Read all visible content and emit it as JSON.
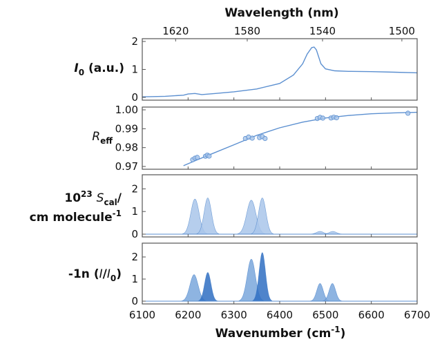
{
  "colors": {
    "line": "#5b8fd0",
    "light": "#a9c6ea",
    "mid": "#7aa7dc",
    "dark": "#2f6fc2",
    "frame": "#555555"
  },
  "chart_data": {
    "type": "line",
    "x_axis": {
      "label_prefix": "Wavenumber (cm",
      "label_sup": "-1",
      "label_suffix": ")",
      "range": [
        6100,
        6700
      ],
      "ticks": [
        6100,
        6200,
        6300,
        6400,
        6500,
        6600,
        6700
      ],
      "tick_labels": [
        "6100",
        "6200",
        "6300",
        "6400",
        "6500",
        "6600",
        "6700"
      ]
    },
    "top_axis": {
      "label": "Wavelength (nm)",
      "ticks": [
        1620,
        1580,
        1540,
        1500
      ],
      "tick_labels": [
        "1620",
        "1580",
        "1540",
        "1500"
      ]
    },
    "panels": [
      {
        "id": "i0",
        "label": {
          "italic": "I",
          "sub": "0",
          "rest": " (a.u.)"
        },
        "ylim": [
          0,
          2
        ],
        "yticks": [
          0,
          1,
          2
        ],
        "ytick_labels": [
          "0",
          "1",
          "2"
        ],
        "series": [
          {
            "kind": "line",
            "x": [
              6100,
              6150,
              6190,
              6200,
              6215,
              6230,
              6260,
              6300,
              6350,
              6400,
              6430,
              6450,
              6460,
              6470,
              6475,
              6480,
              6485,
              6490,
              6500,
              6520,
              6550,
              6600,
              6650,
              6700
            ],
            "y": [
              0.02,
              0.04,
              0.08,
              0.12,
              0.14,
              0.1,
              0.14,
              0.2,
              0.3,
              0.5,
              0.8,
              1.2,
              1.55,
              1.78,
              1.8,
              1.7,
              1.45,
              1.2,
              1.02,
              0.95,
              0.93,
              0.92,
              0.9,
              0.88
            ]
          }
        ]
      },
      {
        "id": "reff",
        "label": {
          "italic": "R",
          "sub": "eff",
          "rest": ""
        },
        "ylim": [
          0.97,
          1.0
        ],
        "yticks": [
          0.97,
          0.98,
          0.99,
          1.0
        ],
        "ytick_labels": [
          "0.97",
          "0.98",
          "0.99",
          "1.00"
        ],
        "series": [
          {
            "kind": "line",
            "x": [
              6190,
              6220,
              6250,
              6300,
              6350,
              6400,
              6450,
              6500,
              6550,
              6600,
              6650,
              6700
            ],
            "y": [
              0.9704,
              0.9735,
              0.9765,
              0.9815,
              0.9865,
              0.9905,
              0.9935,
              0.9957,
              0.997,
              0.9979,
              0.9984,
              0.9987
            ]
          },
          {
            "kind": "scatter",
            "x": [
              6210,
              6215,
              6220,
              6238,
              6242,
              6246,
              6325,
              6332,
              6340,
              6356,
              6362,
              6368,
              6482,
              6488,
              6494,
              6512,
              6518,
              6524,
              6680
            ],
            "y": [
              0.9736,
              0.9744,
              0.9748,
              0.9754,
              0.976,
              0.9755,
              0.9848,
              0.9856,
              0.985,
              0.9853,
              0.9858,
              0.9848,
              0.9954,
              0.996,
              0.9956,
              0.9957,
              0.9961,
              0.9958,
              0.9982
            ]
          }
        ]
      },
      {
        "id": "scal",
        "label": {
          "line1_pre": "10",
          "line1_sup": "23",
          "line1_italic": "S",
          "line1_sub": "cal",
          "line1_post": "/",
          "line2": "cm molecule",
          "line2_sup": "-1"
        },
        "ylim": [
          0,
          2.5
        ],
        "yticks": [
          0,
          1,
          2
        ],
        "ytick_labels": [
          "0",
          "1",
          "2"
        ],
        "series": [
          {
            "kind": "peaks",
            "peaks": [
              {
                "center": 6215,
                "height": 1.55,
                "width": 9,
                "shade": "light"
              },
              {
                "center": 6243,
                "height": 1.6,
                "width": 8,
                "shade": "light"
              },
              {
                "center": 6338,
                "height": 1.5,
                "width": 10,
                "shade": "light"
              },
              {
                "center": 6362,
                "height": 1.6,
                "width": 8,
                "shade": "light"
              },
              {
                "center": 6488,
                "height": 0.12,
                "width": 8,
                "shade": "light"
              },
              {
                "center": 6516,
                "height": 0.12,
                "width": 8,
                "shade": "light"
              }
            ]
          }
        ]
      },
      {
        "id": "ln",
        "label": {
          "pre": "-1n (",
          "italic1": "I",
          "slash": "/",
          "italic2": "I",
          "sub": "0",
          "post": ")"
        },
        "ylim": [
          0,
          2.5
        ],
        "yticks": [
          0,
          1,
          2
        ],
        "ytick_labels": [
          "0",
          "1",
          "2"
        ],
        "series": [
          {
            "kind": "peaks",
            "peaks": [
              {
                "center": 6213,
                "height": 1.2,
                "width": 9,
                "shade": "mid"
              },
              {
                "center": 6243,
                "height": 1.3,
                "width": 7,
                "shade": "dark"
              },
              {
                "center": 6338,
                "height": 1.9,
                "width": 9,
                "shade": "mid"
              },
              {
                "center": 6362,
                "height": 2.2,
                "width": 7,
                "shade": "dark"
              },
              {
                "center": 6488,
                "height": 0.8,
                "width": 7,
                "shade": "mid"
              },
              {
                "center": 6515,
                "height": 0.8,
                "width": 7,
                "shade": "mid"
              }
            ]
          }
        ]
      }
    ]
  }
}
